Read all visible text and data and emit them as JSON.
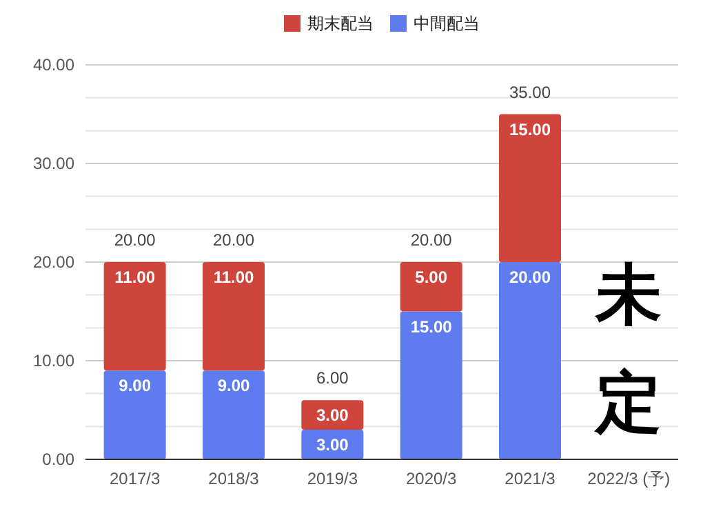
{
  "chart_data": {
    "type": "bar",
    "stacked": true,
    "legend": "top",
    "grid": "y",
    "data_labels": false,
    "categories": [
      "2017/3",
      "2018/3",
      "2019/3",
      "2020/3",
      "2021/3",
      "2022/3 (予)"
    ],
    "series": [
      {
        "name": "中間配当",
        "color": "#5f7bf0",
        "values": [
          9,
          9,
          3,
          15,
          20,
          null
        ],
        "value_labels": [
          "9.00",
          "9.00",
          "3.00",
          "15.00",
          "20.00",
          null
        ]
      },
      {
        "name": "期末配当",
        "color": "#d0453b",
        "values": [
          11,
          11,
          3,
          5,
          15,
          null
        ],
        "value_labels": [
          "11.00",
          "11.00",
          "3.00",
          "5.00",
          "15.00",
          null
        ]
      }
    ],
    "totals": [
      "20.00",
      "20.00",
      "6.00",
      "20.00",
      "35.00",
      null
    ],
    "ylim": [
      0,
      40
    ],
    "yticks": [
      {
        "value": 0,
        "label": "0.00"
      },
      {
        "value": 3.33,
        "label": null
      },
      {
        "value": 6.67,
        "label": null
      },
      {
        "value": 10,
        "label": "10.00"
      },
      {
        "value": 13.33,
        "label": null
      },
      {
        "value": 16.67,
        "label": null
      },
      {
        "value": 20,
        "label": "20.00"
      },
      {
        "value": 23.33,
        "label": null
      },
      {
        "value": 26.67,
        "label": null
      },
      {
        "value": 30,
        "label": "30.00"
      },
      {
        "value": 33.33,
        "label": null
      },
      {
        "value": 36.67,
        "label": null
      },
      {
        "value": 40,
        "label": "40.00"
      }
    ],
    "annotations": [
      "未",
      "定"
    ]
  }
}
